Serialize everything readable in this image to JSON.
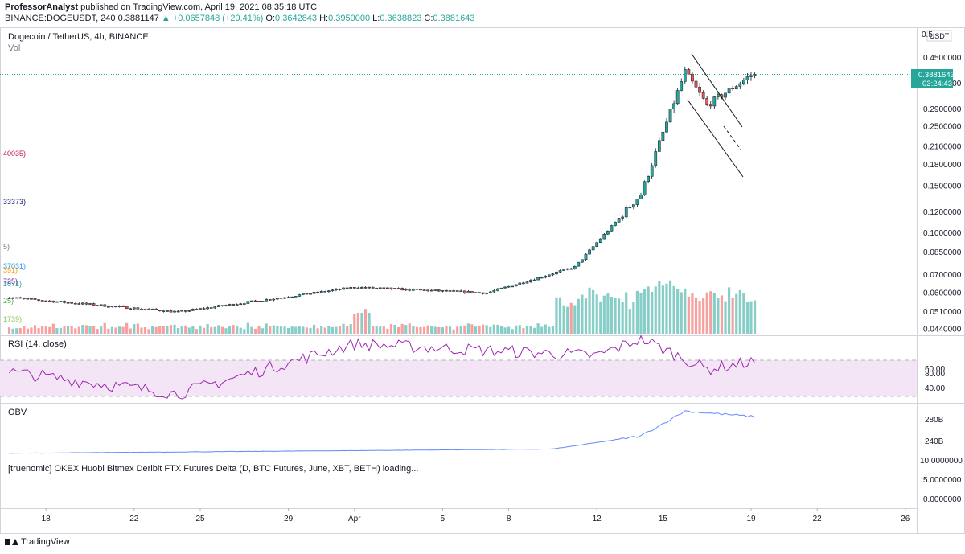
{
  "header": {
    "publisher": "ProfessorAnalyst",
    "published_text": "published on TradingView.com, April 19, 2021 08:35:18 UTC",
    "symbol": "BINANCE:DOGEUSDT, 240",
    "last": "0.3881147",
    "change": "+0.0657848 (+20.41%)",
    "o_label": "O:",
    "o_value": "0.3642843",
    "h_label": "H:",
    "h_value": "0.3950000",
    "l_label": "L:",
    "l_value": "0.3638823",
    "c_label": "C:",
    "c_value": "0.3881643"
  },
  "main_pane": {
    "title": "Dogecoin / TetherUS, 4h, BINANCE",
    "vol_label": "Vol",
    "currency": "USDT",
    "price_tag": "0.3881643",
    "countdown": "03:24:43",
    "left_fragments": [
      {
        "text": "40035)",
        "color": "#c2185b"
      },
      {
        "text": "33373)",
        "color": "#1a237e"
      },
      {
        "text": "5)",
        "color": "#787b86"
      },
      {
        "text": "37031)",
        "color": "#2196f3"
      },
      {
        "text": "391)",
        "color": "#ff9800"
      },
      {
        "text": "725)",
        "color": "#7b1fa2"
      },
      {
        "text": "2071)",
        "color": "#26a69a"
      },
      {
        "text": "25)",
        "color": "#4caf50"
      },
      {
        "text": "1739)",
        "color": "#8bc34a"
      }
    ]
  },
  "rsi_pane": {
    "title": "RSI (14, close)",
    "ticks": [
      "80.00",
      "60.00",
      "40.00"
    ]
  },
  "obv_pane": {
    "title": "OBV",
    "ticks": [
      "280B",
      "240B"
    ]
  },
  "futures_pane": {
    "title": "[truenomic] OKEX Huobi Bitmex Deribit FTX Futures Delta (D, BTC Futures, June, XBT, BETH) loading...",
    "ticks": [
      "10.0000000",
      "5.0000000",
      "0.0000000"
    ]
  },
  "footer": {
    "brand": "TradingView"
  },
  "colors": {
    "up": "#26a69a",
    "down": "#ef5350",
    "rsi_line": "#9c27b0",
    "rsi_band": "#f3e5f5",
    "obv_line": "#2962ff"
  },
  "chart_data": [
    {
      "type": "candlestick",
      "title": "Dogecoin / TetherUS, 4h, BINANCE",
      "y_scale": "log",
      "y_tick_labels": [
        "0.4500000",
        "0.3500000",
        "0.2900000",
        "0.2500000",
        "0.2100000",
        "0.1800000",
        "0.1500000",
        "0.1200000",
        "0.1000000",
        "0.0850000",
        "0.0700000",
        "0.0600000",
        "0.0510000",
        "0.0440000"
      ],
      "top_tick_fragment": "0.5",
      "x_tick_labels": [
        "18",
        "22",
        "25",
        "29",
        "Apr",
        "5",
        "8",
        "12",
        "15",
        "19",
        "22",
        "26"
      ],
      "x_date_range": [
        "2021-03-15",
        "2021-04-27"
      ],
      "key_points": [
        {
          "date": "2021-03-16",
          "close": 0.058
        },
        {
          "date": "2021-03-24",
          "close": 0.051
        },
        {
          "date": "2021-04-01",
          "close": 0.063
        },
        {
          "date": "2021-04-07",
          "close": 0.06
        },
        {
          "date": "2021-04-11",
          "close": 0.075
        },
        {
          "date": "2021-04-14",
          "close": 0.14
        },
        {
          "date": "2021-04-16",
          "close": 0.4
        },
        {
          "date": "2021-04-17",
          "close": 0.3
        },
        {
          "date": "2021-04-19",
          "close": 0.388
        }
      ],
      "last_close": 0.3881643
    },
    {
      "type": "line",
      "title": "RSI (14, close)",
      "y_ticks": [
        80,
        60,
        40
      ],
      "band": [
        30,
        70
      ],
      "key_points": [
        {
          "date": "2021-03-16",
          "value": 58
        },
        {
          "date": "2021-03-24",
          "value": 33
        },
        {
          "date": "2021-04-01",
          "value": 88
        },
        {
          "date": "2021-04-12",
          "value": 75
        },
        {
          "date": "2021-04-14",
          "value": 94
        },
        {
          "date": "2021-04-17",
          "value": 60
        },
        {
          "date": "2021-04-19",
          "value": 68
        }
      ]
    },
    {
      "type": "line",
      "title": "OBV",
      "y_ticks": [
        "280B",
        "240B"
      ],
      "key_points": [
        {
          "date": "2021-03-16",
          "value": "218B"
        },
        {
          "date": "2021-04-10",
          "value": "226B"
        },
        {
          "date": "2021-04-14",
          "value": "250B"
        },
        {
          "date": "2021-04-16",
          "value": "296B"
        },
        {
          "date": "2021-04-19",
          "value": "286B"
        }
      ]
    }
  ]
}
